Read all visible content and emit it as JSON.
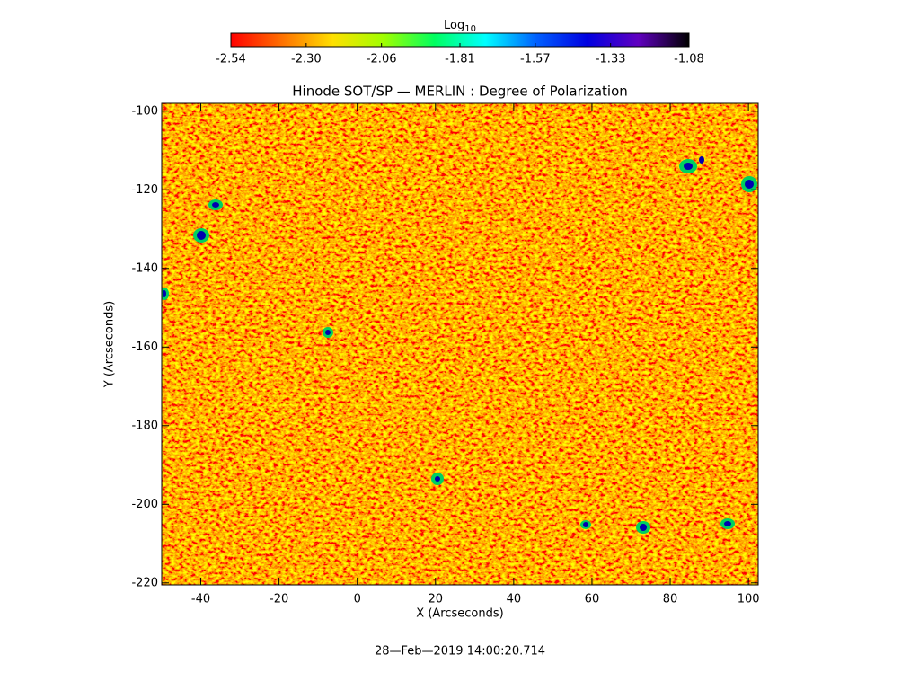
{
  "chart_data": {
    "type": "image",
    "title": "Hinode SOT/SP — MERLIN : Degree of Polarization",
    "x_label": "X (Arcseconds)",
    "y_label": "Y (Arcseconds)",
    "timestamp": "28—Feb—2019 14:00:20.714",
    "colorbar_label": {
      "base": "Log",
      "subscript": "10"
    },
    "clim": [
      -2.54,
      -1.08
    ],
    "cticks": [
      -2.54,
      {
        "value": -2.3,
        "label": "-2.30"
      },
      -2.06,
      -1.81,
      -1.57,
      -1.33,
      -1.08
    ],
    "colormap": [
      "#ff0000",
      "#ff7000",
      "#ffe000",
      "#a0ff00",
      "#00ff60",
      "#00ffff",
      "#0060ff",
      "#0000e0",
      "#6000c0",
      "#000000"
    ],
    "xlim": [
      -50,
      102.5
    ],
    "xticks": [
      -40,
      -20,
      0,
      20,
      40,
      60,
      80,
      100
    ],
    "ylim": [
      -220.5,
      -98
    ],
    "yticks": [
      -100,
      -120,
      -140,
      -160,
      -180,
      -200,
      -220
    ]
  }
}
